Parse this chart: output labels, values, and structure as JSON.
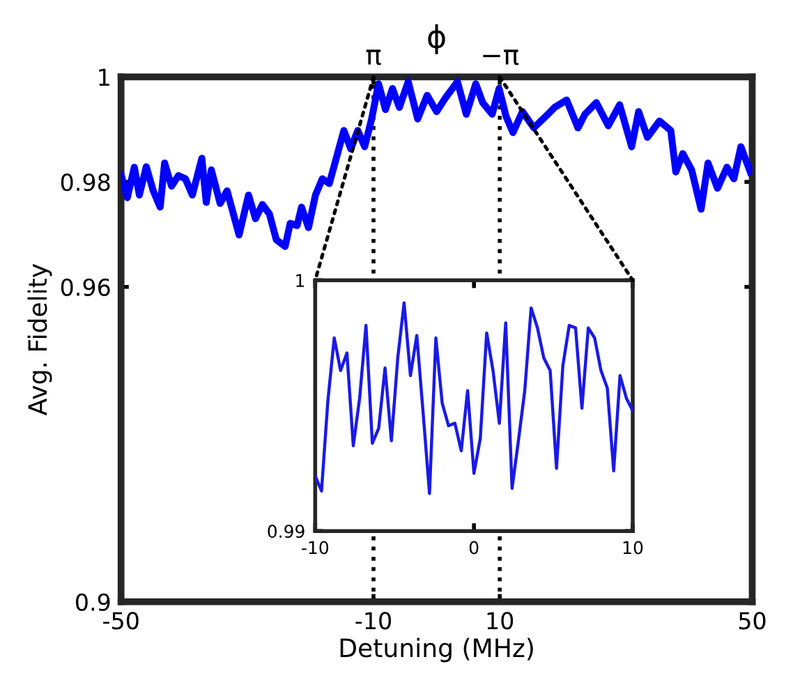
{
  "chart_data": [
    {
      "type": "line",
      "xlabel": "Detuning (MHz)",
      "ylabel": "Avg. Fidelity",
      "x2label": "ϕ",
      "xlim": [
        -50,
        50
      ],
      "ylim": [
        0.9,
        1
      ],
      "xticks": [
        -50,
        -10,
        10,
        50
      ],
      "yticks": [
        0.9,
        0.96,
        0.98,
        1
      ],
      "x2lim": [
        15.708,
        -15.708
      ],
      "x2ticks": [
        {
          "value": 3.1416,
          "label": "π"
        },
        {
          "value": -3.1416,
          "label": "−π"
        }
      ],
      "ref_lines": [
        {
          "axis": "x",
          "value": -10,
          "color": "#000000",
          "line_style": "dotted"
        },
        {
          "axis": "x",
          "value": 10,
          "color": "#000000",
          "line_style": "dotted"
        }
      ],
      "series": [
        {
          "color": "#0000ff",
          "x": [
            -50,
            -49.0,
            -47.9,
            -47.1,
            -46.0,
            -44.9,
            -43.8,
            -43.1,
            -42.0,
            -40.9,
            -39.8,
            -38.7,
            -37.2,
            -36.5,
            -35.7,
            -34.3,
            -33.2,
            -31.3,
            -29.8,
            -28.7,
            -27.6,
            -26.5,
            -25.4,
            -24.0,
            -23.2,
            -22.1,
            -21.4,
            -20.3,
            -19.2,
            -18.1,
            -17.0,
            -15.9,
            -14.7,
            -13.6,
            -12.5,
            -11.4,
            -10.3,
            -9.2,
            -8.1,
            -7.0,
            -5.9,
            -4.5,
            -3.0,
            -1.5,
            0.0,
            1.4,
            3.3,
            4.7,
            6.2,
            7.3,
            8.8,
            9.9,
            11.0,
            12.1,
            13.6,
            15.4,
            17.3,
            18.7,
            20.6,
            22.4,
            23.5,
            25.3,
            27.2,
            29.0,
            30.9,
            32.0,
            33.4,
            35.3,
            37.1,
            37.9,
            39.0,
            40.4,
            41.9,
            43.0,
            44.5,
            46.0,
            47.1,
            48.2,
            49.7
          ],
          "values": [
            0.9814,
            0.977,
            0.9828,
            0.9775,
            0.9829,
            0.9783,
            0.9752,
            0.9836,
            0.9792,
            0.9812,
            0.9806,
            0.9775,
            0.9845,
            0.9761,
            0.9823,
            0.9759,
            0.9783,
            0.9699,
            0.9775,
            0.973,
            0.9757,
            0.9739,
            0.969,
            0.9677,
            0.9721,
            0.9717,
            0.9752,
            0.9713,
            0.9775,
            0.9806,
            0.9797,
            0.9845,
            0.9898,
            0.9863,
            0.9898,
            0.9867,
            0.992,
            0.9987,
            0.9938,
            0.9978,
            0.9942,
            0.9991,
            0.992,
            0.9965,
            0.9934,
            0.996,
            0.9991,
            0.9929,
            0.9987,
            0.9951,
            0.9929,
            0.9978,
            0.9925,
            0.9894,
            0.9934,
            0.9903,
            0.9925,
            0.9942,
            0.9956,
            0.9903,
            0.9929,
            0.9951,
            0.9907,
            0.9947,
            0.9867,
            0.9934,
            0.9885,
            0.9916,
            0.9898,
            0.9819,
            0.9854,
            0.9823,
            0.9748,
            0.9836,
            0.9788,
            0.9828,
            0.9806,
            0.9867,
            0.9819
          ]
        }
      ]
    },
    {
      "type": "line",
      "xlim": [
        -10,
        10
      ],
      "ylim": [
        0.99,
        1
      ],
      "xticks": [
        -10,
        0,
        10
      ],
      "yticks": [
        0.99,
        1
      ],
      "series": [
        {
          "color": "#1a1ae6",
          "x": [
            -10,
            -9.6,
            -9.2,
            -8.8,
            -8.4,
            -8,
            -7.6,
            -7.2,
            -6.8,
            -6.4,
            -6,
            -5.6,
            -5.2,
            -4.8,
            -4.4,
            -4,
            -3.6,
            -3.2,
            -2.8,
            -2.4,
            -2,
            -1.6,
            -1.2,
            -0.8,
            -0.4,
            0,
            0.4,
            0.8,
            1.2,
            1.6,
            2,
            2.4,
            2.8,
            3.2,
            3.6,
            4,
            4.4,
            4.8,
            5.2,
            5.6,
            6,
            6.4,
            6.8,
            7.2,
            7.6,
            8,
            8.4,
            8.8,
            9.2,
            9.6,
            10
          ],
          "values": [
            0.9922,
            0.9916,
            0.9952,
            0.9977,
            0.9964,
            0.9971,
            0.9934,
            0.9953,
            0.9982,
            0.9935,
            0.9941,
            0.9965,
            0.9936,
            0.9969,
            0.9991,
            0.9962,
            0.9978,
            0.9947,
            0.9915,
            0.9977,
            0.9951,
            0.9942,
            0.9943,
            0.9932,
            0.9956,
            0.9923,
            0.9937,
            0.9979,
            0.9964,
            0.9943,
            0.9983,
            0.9917,
            0.9936,
            0.9956,
            0.9989,
            0.9981,
            0.9969,
            0.9964,
            0.9925,
            0.9966,
            0.9982,
            0.9981,
            0.9949,
            0.9981,
            0.9977,
            0.9964,
            0.9957,
            0.9924,
            0.9962,
            0.9953,
            0.9948
          ]
        }
      ]
    }
  ]
}
